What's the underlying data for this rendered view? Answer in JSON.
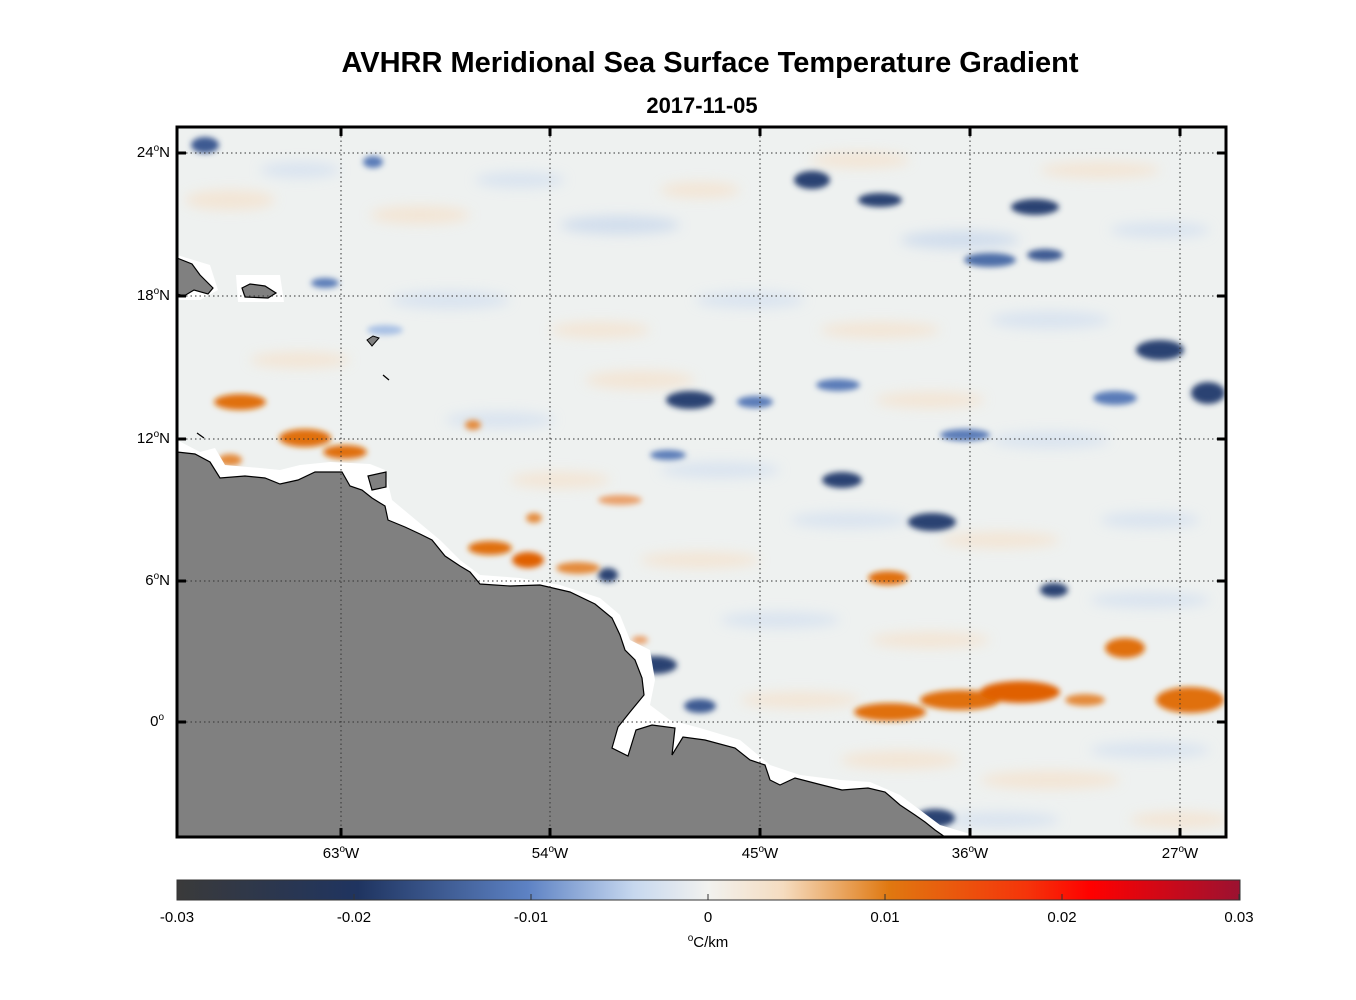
{
  "title": "AVHRR Meridional Sea Surface Temperature Gradient",
  "subtitle": "2017-11-05",
  "lat_ticks": [
    {
      "deg": "24",
      "hemi": "N"
    },
    {
      "deg": "18",
      "hemi": "N"
    },
    {
      "deg": "12",
      "hemi": "N"
    },
    {
      "deg": "6",
      "hemi": "N"
    },
    {
      "deg": "0",
      "hemi": ""
    }
  ],
  "lon_ticks": [
    {
      "deg": "63",
      "hemi": "W"
    },
    {
      "deg": "54",
      "hemi": "W"
    },
    {
      "deg": "45",
      "hemi": "W"
    },
    {
      "deg": "36",
      "hemi": "W"
    },
    {
      "deg": "27",
      "hemi": "W"
    }
  ],
  "colorbar": {
    "ticks": [
      "-0.03",
      "-0.02",
      "-0.01",
      "0",
      "0.01",
      "0.02",
      "0.03"
    ],
    "unit_degree": "o",
    "unit": "C/km",
    "colors": [
      "#3a3a3a",
      "#1f3460",
      "#5d82c4",
      "#c7d8ef",
      "#f2f2ef",
      "#f5dcc0",
      "#e07810",
      "#f5340a",
      "#ff0000",
      "#9b1231"
    ]
  },
  "colors": {
    "land": "#808080",
    "ocean": "#eef1f0",
    "positive": "#e07010",
    "negative": "#2c4272"
  }
}
